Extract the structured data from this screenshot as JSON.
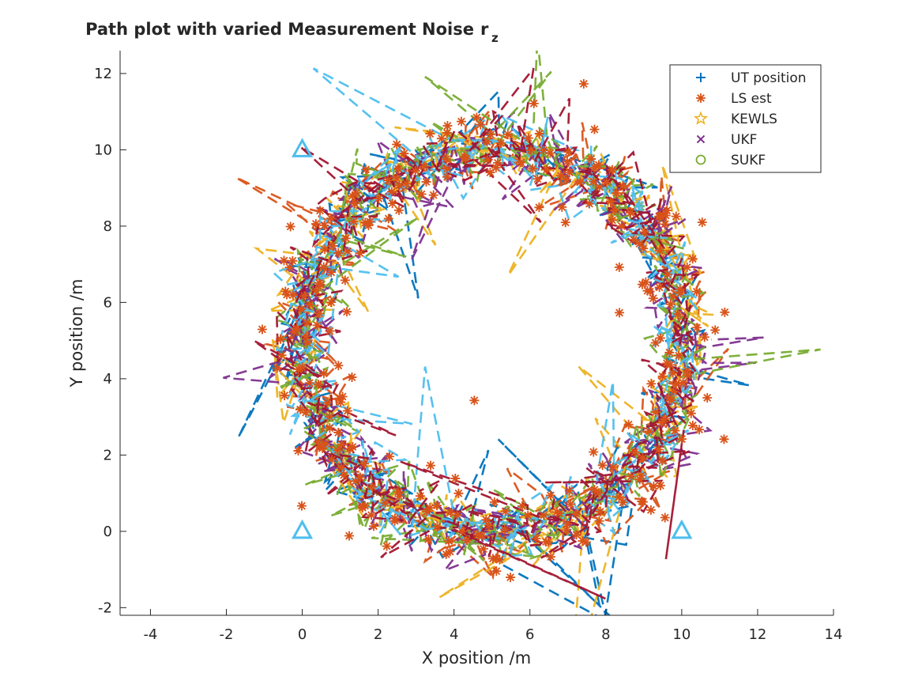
{
  "chart_data": {
    "type": "scatter",
    "title": "Path plot with varied Measurement Noise",
    "title_subscript": "r",
    "title_subscript_index": "z",
    "xlabel": "X position /m",
    "ylabel": "Y position /m",
    "xlim": [
      -4.8,
      14
    ],
    "ylim": [
      -2.2,
      12.6
    ],
    "xticks": [
      "-4",
      "-2",
      "0",
      "2",
      "4",
      "6",
      "8",
      "10",
      "12",
      "14"
    ],
    "yticks": [
      "-2",
      "0",
      "2",
      "4",
      "6",
      "8",
      "10",
      "12"
    ],
    "grid": false,
    "legend_position": "top-right",
    "series": [
      {
        "name": "UT position",
        "marker": "+",
        "color": "#0072bd"
      },
      {
        "name": "LS est",
        "marker": "*",
        "color": "#d95319"
      },
      {
        "name": "KEWLS",
        "marker": "pentagram",
        "color": "#edb120"
      },
      {
        "name": "UKF",
        "marker": "x",
        "color": "#7e2f8e"
      },
      {
        "name": "SUKF",
        "marker": "o",
        "color": "#77ac30"
      }
    ],
    "path_colors": [
      "#0072bd",
      "#d95319",
      "#edb120",
      "#7e2f8e",
      "#77ac30",
      "#4dbeee",
      "#a2142f"
    ],
    "path": {
      "center": [
        5,
        5
      ],
      "radius": 5
    },
    "anchors": {
      "marker": "triangle",
      "color": "#4dbeee",
      "points": [
        [
          0,
          0
        ],
        [
          0,
          10
        ],
        [
          10,
          0
        ],
        [
          10,
          10
        ]
      ]
    }
  }
}
